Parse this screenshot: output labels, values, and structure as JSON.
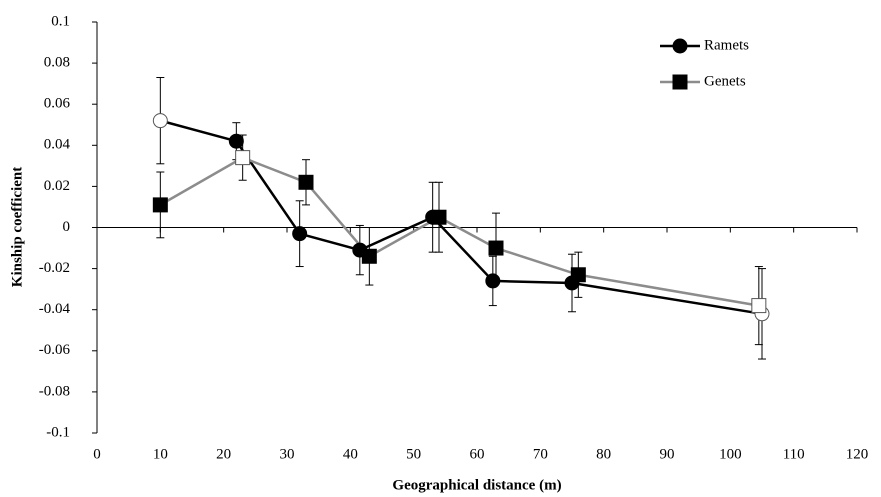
{
  "chart_data": {
    "type": "line",
    "x_label": "Geographical distance (m)",
    "y_label": "Kinship coefficient",
    "xlim": [
      0,
      120
    ],
    "xticks": [
      0,
      10,
      20,
      30,
      40,
      50,
      60,
      70,
      80,
      90,
      100,
      110,
      120
    ],
    "ylim": [
      -0.1,
      0.1
    ],
    "yticks": [
      -0.1,
      -0.08,
      -0.06,
      -0.04,
      -0.02,
      0,
      0.02,
      0.04,
      0.06,
      0.08,
      0.1
    ],
    "legend": "top-right",
    "series": [
      {
        "name": "Ramets",
        "color": "#000000",
        "marker": "circle",
        "marker_color": "#000000",
        "x": [
          10,
          22,
          32,
          41.5,
          53,
          62.5,
          75,
          105
        ],
        "values": [
          0.052,
          0.042,
          -0.003,
          -0.011,
          0.005,
          -0.026,
          -0.027,
          -0.042
        ],
        "errors": [
          0.021,
          0.009,
          0.016,
          0.012,
          0.017,
          0.012,
          0.014,
          0.022
        ],
        "hollow": [
          true,
          false,
          false,
          false,
          false,
          false,
          false,
          true
        ]
      },
      {
        "name": "Genets",
        "color": "#8c8c8c",
        "marker": "square",
        "marker_color": "#000000",
        "x": [
          10,
          23,
          33,
          43,
          54,
          63,
          76,
          104.5
        ],
        "values": [
          0.011,
          0.034,
          0.022,
          -0.014,
          0.005,
          -0.01,
          -0.023,
          -0.038
        ],
        "errors": [
          0.016,
          0.011,
          0.011,
          0.014,
          0.017,
          0.017,
          0.011,
          0.019
        ],
        "hollow": [
          false,
          true,
          false,
          false,
          false,
          false,
          false,
          true
        ]
      }
    ]
  }
}
